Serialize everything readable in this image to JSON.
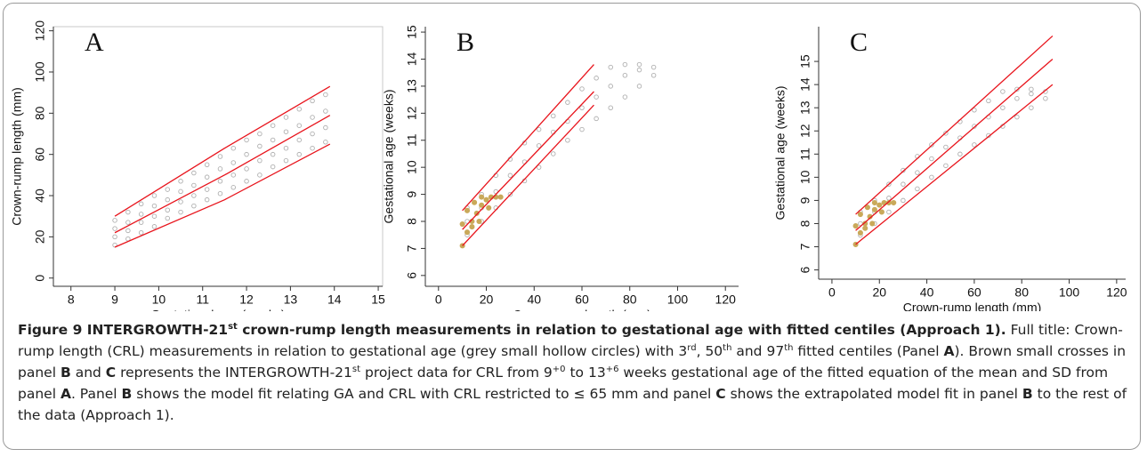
{
  "chart_data": [
    {
      "type": "scatter",
      "panel": "A",
      "xlabel": "Gestational age (weeks)",
      "ylabel": "Crown-rump length (mm)",
      "xlim": [
        7.6,
        15.1
      ],
      "xticks": [
        8,
        9,
        10,
        11,
        12,
        13,
        14,
        15
      ],
      "ylim": [
        -4,
        122
      ],
      "yticks": [
        0,
        20,
        40,
        60,
        80,
        100,
        120
      ],
      "frame": true,
      "point_sets": [
        {
          "color": "#b0b0b0",
          "marker": "hollow-circle",
          "x": [
            9.0,
            9.0,
            9.0,
            9.0,
            9.3,
            9.3,
            9.3,
            9.3,
            9.6,
            9.6,
            9.6,
            9.6,
            9.9,
            9.9,
            9.9,
            9.9,
            10.2,
            10.2,
            10.2,
            10.2,
            10.5,
            10.5,
            10.5,
            10.5,
            10.8,
            10.8,
            10.8,
            10.8,
            11.1,
            11.1,
            11.1,
            11.1,
            11.4,
            11.4,
            11.4,
            11.4,
            11.7,
            11.7,
            11.7,
            11.7,
            12.0,
            12.0,
            12.0,
            12.0,
            12.3,
            12.3,
            12.3,
            12.3,
            12.6,
            12.6,
            12.6,
            12.6,
            12.9,
            12.9,
            12.9,
            12.9,
            13.2,
            13.2,
            13.2,
            13.2,
            13.5,
            13.5,
            13.5,
            13.5,
            13.8,
            13.8,
            13.8,
            13.8
          ],
          "y": [
            16,
            20,
            24,
            28,
            19,
            23,
            27,
            32,
            22,
            27,
            31,
            36,
            25,
            30,
            35,
            40,
            29,
            33,
            38,
            43,
            32,
            37,
            42,
            47,
            35,
            40,
            45,
            51,
            38,
            43,
            49,
            55,
            41,
            47,
            53,
            59,
            44,
            50,
            56,
            63,
            47,
            53,
            60,
            67,
            50,
            57,
            64,
            70,
            54,
            60,
            67,
            74,
            57,
            63,
            71,
            78,
            60,
            67,
            74,
            82,
            63,
            70,
            78,
            86,
            66,
            73,
            81,
            89
          ]
        }
      ],
      "lines": [
        {
          "color": "#e8141c",
          "x": [
            9,
            11.5,
            13.9
          ],
          "y": [
            15,
            38,
            65
          ]
        },
        {
          "color": "#e8141c",
          "x": [
            9,
            11.5,
            13.9
          ],
          "y": [
            22,
            50,
            79
          ]
        },
        {
          "color": "#e8141c",
          "x": [
            9,
            11.5,
            13.9
          ],
          "y": [
            30,
            63,
            93
          ]
        }
      ]
    },
    {
      "type": "scatter",
      "panel": "B",
      "xlabel": "Crown-rump length (mm)",
      "ylabel": "Gestational age (weeks)",
      "xlim": [
        -5.5,
        125.5
      ],
      "xticks": [
        0,
        20,
        40,
        60,
        80,
        100,
        120
      ],
      "ylim": [
        5.6,
        15.2
      ],
      "yticks": [
        6,
        7,
        8,
        9,
        10,
        11,
        12,
        13,
        14,
        15
      ],
      "frame": false,
      "point_sets": [
        {
          "color": "#b0b0b0",
          "marker": "hollow-circle",
          "x": [
            12,
            12,
            12,
            18,
            18,
            18,
            24,
            24,
            24,
            30,
            30,
            30,
            36,
            36,
            36,
            42,
            42,
            42,
            48,
            48,
            48,
            54,
            54,
            54,
            60,
            60,
            60,
            66,
            66,
            66,
            72,
            72,
            72,
            78,
            78,
            78,
            84,
            84,
            84,
            90,
            90
          ],
          "y": [
            7.5,
            8.0,
            8.5,
            8.0,
            8.5,
            9.0,
            8.5,
            9.1,
            9.7,
            9.0,
            9.7,
            10.3,
            9.5,
            10.2,
            10.9,
            10.0,
            10.8,
            11.4,
            10.5,
            11.3,
            11.9,
            11.0,
            11.7,
            12.4,
            11.4,
            12.2,
            12.9,
            11.8,
            12.6,
            13.3,
            12.2,
            13.0,
            13.7,
            12.6,
            13.4,
            13.8,
            13.0,
            13.6,
            13.8,
            13.4,
            13.7
          ]
        },
        {
          "color": "#c9a95a",
          "marker": "filled-circle",
          "x": [
            10,
            12,
            14,
            16,
            18,
            20,
            22,
            24,
            26,
            12,
            15,
            18,
            21,
            10,
            14,
            17
          ],
          "y": [
            7.1,
            7.6,
            8.0,
            8.3,
            8.6,
            8.8,
            8.9,
            8.9,
            8.9,
            8.4,
            8.7,
            8.9,
            8.5,
            7.9,
            7.8,
            8.0
          ]
        }
      ],
      "lines": [
        {
          "color": "#e8141c",
          "x": [
            10,
            65
          ],
          "y": [
            7.1,
            12.3
          ]
        },
        {
          "color": "#e8141c",
          "x": [
            10,
            65
          ],
          "y": [
            7.7,
            12.8
          ]
        },
        {
          "color": "#e8141c",
          "x": [
            10,
            65
          ],
          "y": [
            8.4,
            13.8
          ]
        }
      ]
    },
    {
      "type": "scatter",
      "panel": "C",
      "xlabel": "Crown-rump length (mm)",
      "ylabel": "Gestational age (weeks)",
      "xlim": [
        -5.6,
        123.8
      ],
      "xticks": [
        0,
        20,
        40,
        60,
        80,
        100,
        120
      ],
      "ylim": [
        5.6,
        16.5
      ],
      "yticks": [
        6,
        7,
        8,
        9,
        10,
        11,
        12,
        13,
        14,
        15
      ],
      "frame": false,
      "point_sets": [
        {
          "color": "#b0b0b0",
          "marker": "hollow-circle",
          "x": [
            12,
            12,
            12,
            18,
            18,
            18,
            24,
            24,
            24,
            30,
            30,
            30,
            36,
            36,
            36,
            42,
            42,
            42,
            48,
            48,
            48,
            54,
            54,
            54,
            60,
            60,
            60,
            66,
            66,
            66,
            72,
            72,
            72,
            78,
            78,
            78,
            84,
            84,
            84,
            90,
            90
          ],
          "y": [
            7.5,
            8.0,
            8.5,
            8.0,
            8.5,
            9.0,
            8.5,
            9.1,
            9.7,
            9.0,
            9.7,
            10.3,
            9.5,
            10.2,
            10.9,
            10.0,
            10.8,
            11.4,
            10.5,
            11.3,
            11.9,
            11.0,
            11.7,
            12.4,
            11.4,
            12.2,
            12.9,
            11.8,
            12.6,
            13.3,
            12.2,
            13.0,
            13.7,
            12.6,
            13.4,
            13.8,
            13.0,
            13.6,
            13.8,
            13.4,
            13.7
          ]
        },
        {
          "color": "#c9a95a",
          "marker": "filled-circle",
          "x": [
            10,
            12,
            14,
            16,
            18,
            20,
            22,
            24,
            26,
            12,
            15,
            18,
            21,
            10,
            14,
            17
          ],
          "y": [
            7.1,
            7.6,
            8.0,
            8.3,
            8.6,
            8.8,
            8.9,
            8.9,
            8.9,
            8.4,
            8.7,
            8.9,
            8.5,
            7.9,
            7.8,
            8.0
          ]
        }
      ],
      "lines": [
        {
          "color": "#e8141c",
          "x": [
            10,
            93
          ],
          "y": [
            7.1,
            14.0
          ]
        },
        {
          "color": "#e8141c",
          "x": [
            10,
            93
          ],
          "y": [
            7.7,
            15.1
          ]
        },
        {
          "color": "#e8141c",
          "x": [
            10,
            93
          ],
          "y": [
            8.4,
            16.1
          ]
        }
      ]
    }
  ],
  "caption": [
    {
      "text": "Figure 9 INTERGROWTH-21",
      "style": "bold"
    },
    {
      "text": "st",
      "style": "bold-sup"
    },
    {
      "text": " crown-rump length measurements in relation to gestational age with fitted centiles (Approach 1).",
      "style": "bold"
    },
    {
      "text": " Full title: Crown-rump length (CRL) measurements in relation to gestational age (grey small hollow circles) with 3",
      "style": "plain"
    },
    {
      "text": "rd",
      "style": "sup"
    },
    {
      "text": ", 50",
      "style": "plain"
    },
    {
      "text": "th",
      "style": "sup"
    },
    {
      "text": " and 97",
      "style": "plain"
    },
    {
      "text": "th",
      "style": "sup"
    },
    {
      "text": " fitted centiles (Panel ",
      "style": "plain"
    },
    {
      "text": "A",
      "style": "bold"
    },
    {
      "text": "). Brown small crosses in panel ",
      "style": "plain"
    },
    {
      "text": "B",
      "style": "bold"
    },
    {
      "text": " and ",
      "style": "plain"
    },
    {
      "text": "C",
      "style": "bold"
    },
    {
      "text": " represents the INTERGROWTH-21",
      "style": "plain"
    },
    {
      "text": "st",
      "style": "sup"
    },
    {
      "text": " project data for CRL from 9",
      "style": "plain"
    },
    {
      "text": "+0",
      "style": "sup"
    },
    {
      "text": " to 13",
      "style": "plain"
    },
    {
      "text": "+6",
      "style": "sup"
    },
    {
      "text": " weeks gestational age of the fitted equation of the mean and SD from panel ",
      "style": "plain"
    },
    {
      "text": "A",
      "style": "bold"
    },
    {
      "text": ". Panel ",
      "style": "plain"
    },
    {
      "text": "B",
      "style": "bold"
    },
    {
      "text": " shows the model fit relating GA and CRL with CRL restricted to ≤ 65 mm and panel ",
      "style": "plain"
    },
    {
      "text": "C",
      "style": "bold"
    },
    {
      "text": " shows the extrapolated model fit in panel ",
      "style": "plain"
    },
    {
      "text": "B",
      "style": "bold"
    },
    {
      "text": " to the rest of the data (Approach 1).",
      "style": "plain"
    }
  ]
}
